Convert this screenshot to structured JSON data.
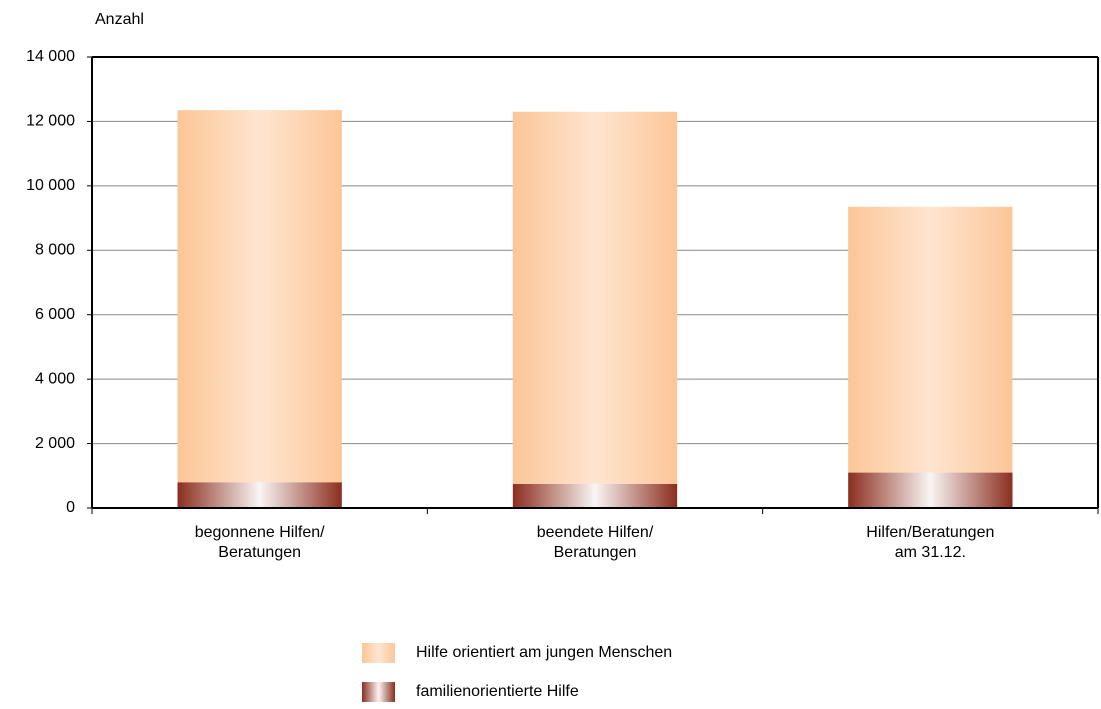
{
  "chart_data": {
    "type": "stacked_bar",
    "y_axis_label": "Anzahl",
    "categories": [
      "begonnene Hilfen/\nBeratungen",
      "beendete Hilfen/\nBeratungen",
      "Hilfen/Beratungen\nam 31.12."
    ],
    "series": [
      {
        "name": "familienorientierte Hilfe",
        "color": "#8b2e1e",
        "values": [
          800,
          750,
          1100
        ]
      },
      {
        "name": "Hilfe orientiert am jungen Menschen",
        "color": "#fcc697",
        "values": [
          11550,
          11550,
          8250
        ]
      }
    ],
    "ylim": [
      0,
      14000
    ],
    "yticks": [
      0,
      {
        "value": 2000,
        "label": "2 000"
      },
      {
        "value": 4000,
        "label": "4 000"
      },
      {
        "value": 6000,
        "label": "6 000"
      },
      {
        "value": 8000,
        "label": "8 000"
      },
      {
        "value": 10000,
        "label": "10 000"
      },
      {
        "value": 12000,
        "label": "12 000"
      },
      {
        "value": 14000,
        "label": "14 000"
      }
    ],
    "grid": true
  }
}
